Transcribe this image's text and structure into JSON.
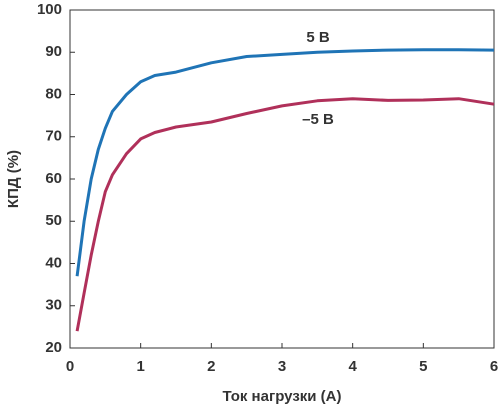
{
  "chart_data": {
    "type": "line",
    "x_label": "Ток нагрузки (А)",
    "y_label": "КПД (%)",
    "x": [
      0.1,
      0.2,
      0.3,
      0.4,
      0.5,
      0.6,
      0.8,
      1.0,
      1.2,
      1.5,
      2.0,
      2.5,
      3.0,
      3.5,
      4.0,
      4.5,
      5.0,
      5.5,
      6.0
    ],
    "series": [
      {
        "name": "5 В",
        "color": "#1f74b6",
        "values": [
          37,
          50,
          60,
          67,
          72,
          76,
          80,
          83,
          84.5,
          85.3,
          87.5,
          89,
          89.5,
          90,
          90.3,
          90.5,
          90.6,
          90.6,
          90.5
        ]
      },
      {
        "name": "–5 В",
        "color": "#b0305a",
        "values": [
          24,
          33,
          42,
          50,
          57,
          61,
          66,
          69.5,
          71,
          72.3,
          73.5,
          75.5,
          77.3,
          78.5,
          79,
          78.6,
          78.7,
          79,
          77.7
        ]
      }
    ],
    "xlim": [
      0,
      6
    ],
    "xticks": [
      0,
      1,
      2,
      3,
      4,
      5,
      6
    ],
    "ylim": [
      20,
      100
    ],
    "yticks": [
      20,
      30,
      40,
      50,
      60,
      70,
      80,
      90,
      100
    ],
    "grid": false
  }
}
